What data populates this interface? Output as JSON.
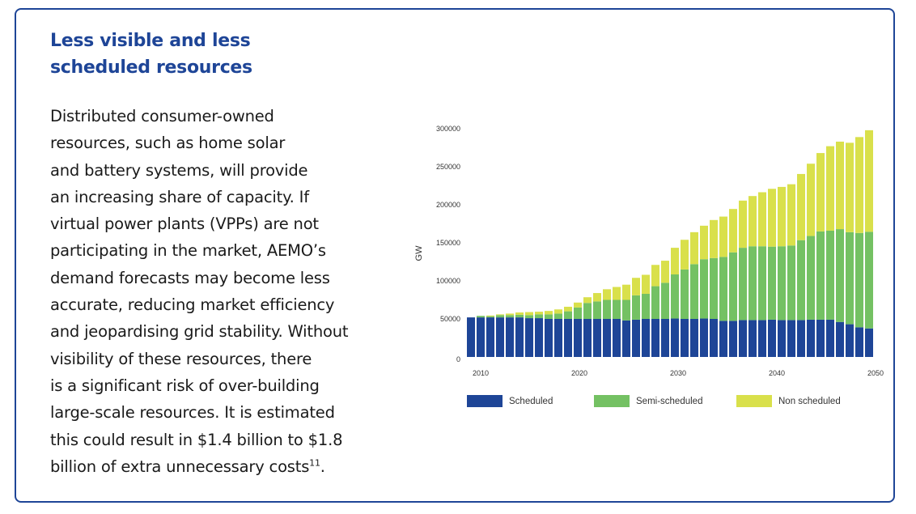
{
  "heading": {
    "line1": "Less visible and less",
    "line2": "scheduled resources"
  },
  "body": {
    "lines": [
      "Distributed consumer-owned",
      "resources, such as home solar",
      "and battery systems, will provide",
      "an increasing share of capacity. If",
      "virtual power plants (VPPs) are not",
      "participating in the market, AEMO’s",
      "demand forecasts may become less",
      "accurate, reducing market efficiency",
      "and jeopardising grid stability. Without",
      "visibility of these resources, there",
      "is a significant risk of over-building",
      "large-scale resources. It is estimated",
      "this could result in $1.4 billion to $1.8",
      "billion of extra unnecessary costs"
    ],
    "footnote": "11",
    "trailing": "."
  },
  "chart_data": {
    "type": "bar",
    "stacked": true,
    "title": "",
    "xlabel": "",
    "ylabel": "GW",
    "ylim": [
      0,
      300000
    ],
    "yticks": [
      0,
      50000,
      100000,
      150000,
      200000,
      250000,
      300000
    ],
    "ytick_labels": [
      "0",
      "50000",
      "100000",
      "150000",
      "200000",
      "250000",
      "300000"
    ],
    "xtick_labels": [
      "2010",
      "2020",
      "2030",
      "2040",
      "2050"
    ],
    "grid": false,
    "legend_position": "bottom",
    "categories": [
      2009,
      2010,
      2011,
      2012,
      2013,
      2014,
      2015,
      2016,
      2017,
      2018,
      2019,
      2020,
      2021,
      2022,
      2023,
      2024,
      2025,
      2026,
      2027,
      2028,
      2029,
      2030,
      2031,
      2032,
      2033,
      2034,
      2035,
      2036,
      2037,
      2038,
      2039,
      2040,
      2041,
      2042,
      2043,
      2044,
      2045,
      2046,
      2047,
      2048,
      2049,
      2050
    ],
    "series": [
      {
        "name": "Scheduled",
        "color": "#1e4597",
        "values": [
          52000,
          52000,
          52000,
          52000,
          52000,
          52000,
          51000,
          51000,
          50000,
          50000,
          50000,
          50000,
          50000,
          50000,
          50000,
          50000,
          48000,
          49000,
          50000,
          50000,
          50000,
          50500,
          50000,
          50000,
          50500,
          50000,
          47500,
          47500,
          48500,
          48500,
          48500,
          49000,
          48500,
          48500,
          48500,
          49000,
          49000,
          49000,
          46000,
          43000,
          39000,
          37500
        ]
      },
      {
        "name": "Semi-scheduled",
        "color": "#74c163",
        "values": [
          0,
          2000,
          1500,
          3000,
          3000,
          3500,
          4000,
          5000,
          6000,
          7000,
          10000,
          15000,
          21000,
          23000,
          25000,
          25000,
          27000,
          32000,
          33000,
          43000,
          47500,
          58000,
          65000,
          72000,
          78000,
          80000,
          84000,
          90000,
          95000,
          97000,
          97000,
          96000,
          97000,
          98000,
          105000,
          110000,
          116000,
          117000,
          122000,
          121000,
          124000,
          127000
        ]
      },
      {
        "name": "Non scheduled",
        "color": "#d9e04b",
        "values": [
          0,
          0,
          1000,
          1000,
          2000,
          3000,
          4000,
          3500,
          4500,
          5500,
          6000,
          6500,
          7500,
          11000,
          14000,
          17000,
          20000,
          23000,
          25000,
          28000,
          29000,
          35000,
          39000,
          42000,
          44000,
          50000,
          53000,
          57000,
          62000,
          66000,
          71000,
          76000,
          78000,
          80500,
          87000,
          95000,
          103000,
          111000,
          115000,
          117500,
          126000,
          133500
        ]
      }
    ]
  }
}
